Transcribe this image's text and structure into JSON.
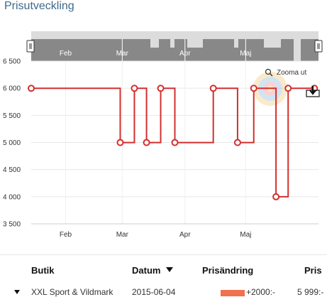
{
  "page": {
    "title": "Prisutveckling"
  },
  "chart": {
    "zoom_out_label": "Zooma ut",
    "navigator_months": [
      "Feb",
      "Mar",
      "Apr",
      "Maj"
    ],
    "colors": {
      "line": "#d22f2f",
      "navigator_fill": "#888888",
      "navigator_bg": "#dcdcdc",
      "grid": "#e6e6e6"
    }
  },
  "chart_data": {
    "type": "line",
    "step": true,
    "ylim": [
      3500,
      6500
    ],
    "yticks": [
      {
        "value": 3500,
        "label": "3 500"
      },
      {
        "value": 4000,
        "label": "4 000"
      },
      {
        "value": 4500,
        "label": "4 500"
      },
      {
        "value": 5000,
        "label": "5 000"
      },
      {
        "value": 5500,
        "label": "5 500"
      },
      {
        "value": 6000,
        "label": "6 000"
      },
      {
        "value": 6500,
        "label": "6 500"
      }
    ],
    "xlim": [
      "2015-01-15",
      "2015-06-06"
    ],
    "xticks": [
      {
        "date": "2015-02-01",
        "label": "Feb"
      },
      {
        "date": "2015-03-01",
        "label": "Mar"
      },
      {
        "date": "2015-04-01",
        "label": "Apr"
      },
      {
        "date": "2015-05-01",
        "label": "Maj"
      }
    ],
    "series": [
      {
        "points": [
          {
            "x": "2015-01-15",
            "y": 5999
          },
          {
            "x": "2015-02-28",
            "y": 4999
          },
          {
            "x": "2015-03-07",
            "y": 5999
          },
          {
            "x": "2015-03-13",
            "y": 4999
          },
          {
            "x": "2015-03-20",
            "y": 5999
          },
          {
            "x": "2015-03-27",
            "y": 4999
          },
          {
            "x": "2015-04-15",
            "y": 5999
          },
          {
            "x": "2015-04-27",
            "y": 4999
          },
          {
            "x": "2015-05-05",
            "y": 5999
          },
          {
            "x": "2015-05-16",
            "y": 3999
          },
          {
            "x": "2015-05-22",
            "y": 5999
          },
          {
            "x": "2015-06-04",
            "y": 5999
          }
        ]
      }
    ]
  },
  "table": {
    "headers": {
      "store": "Butik",
      "date": "Datum",
      "change": "Prisändring",
      "price": "Pris"
    },
    "rows": [
      {
        "store": "XXL Sport & Vildmark",
        "date": "2015-06-04",
        "change": "+2000:-",
        "change_fraction": 0.5,
        "price": "5 999:-"
      }
    ]
  }
}
